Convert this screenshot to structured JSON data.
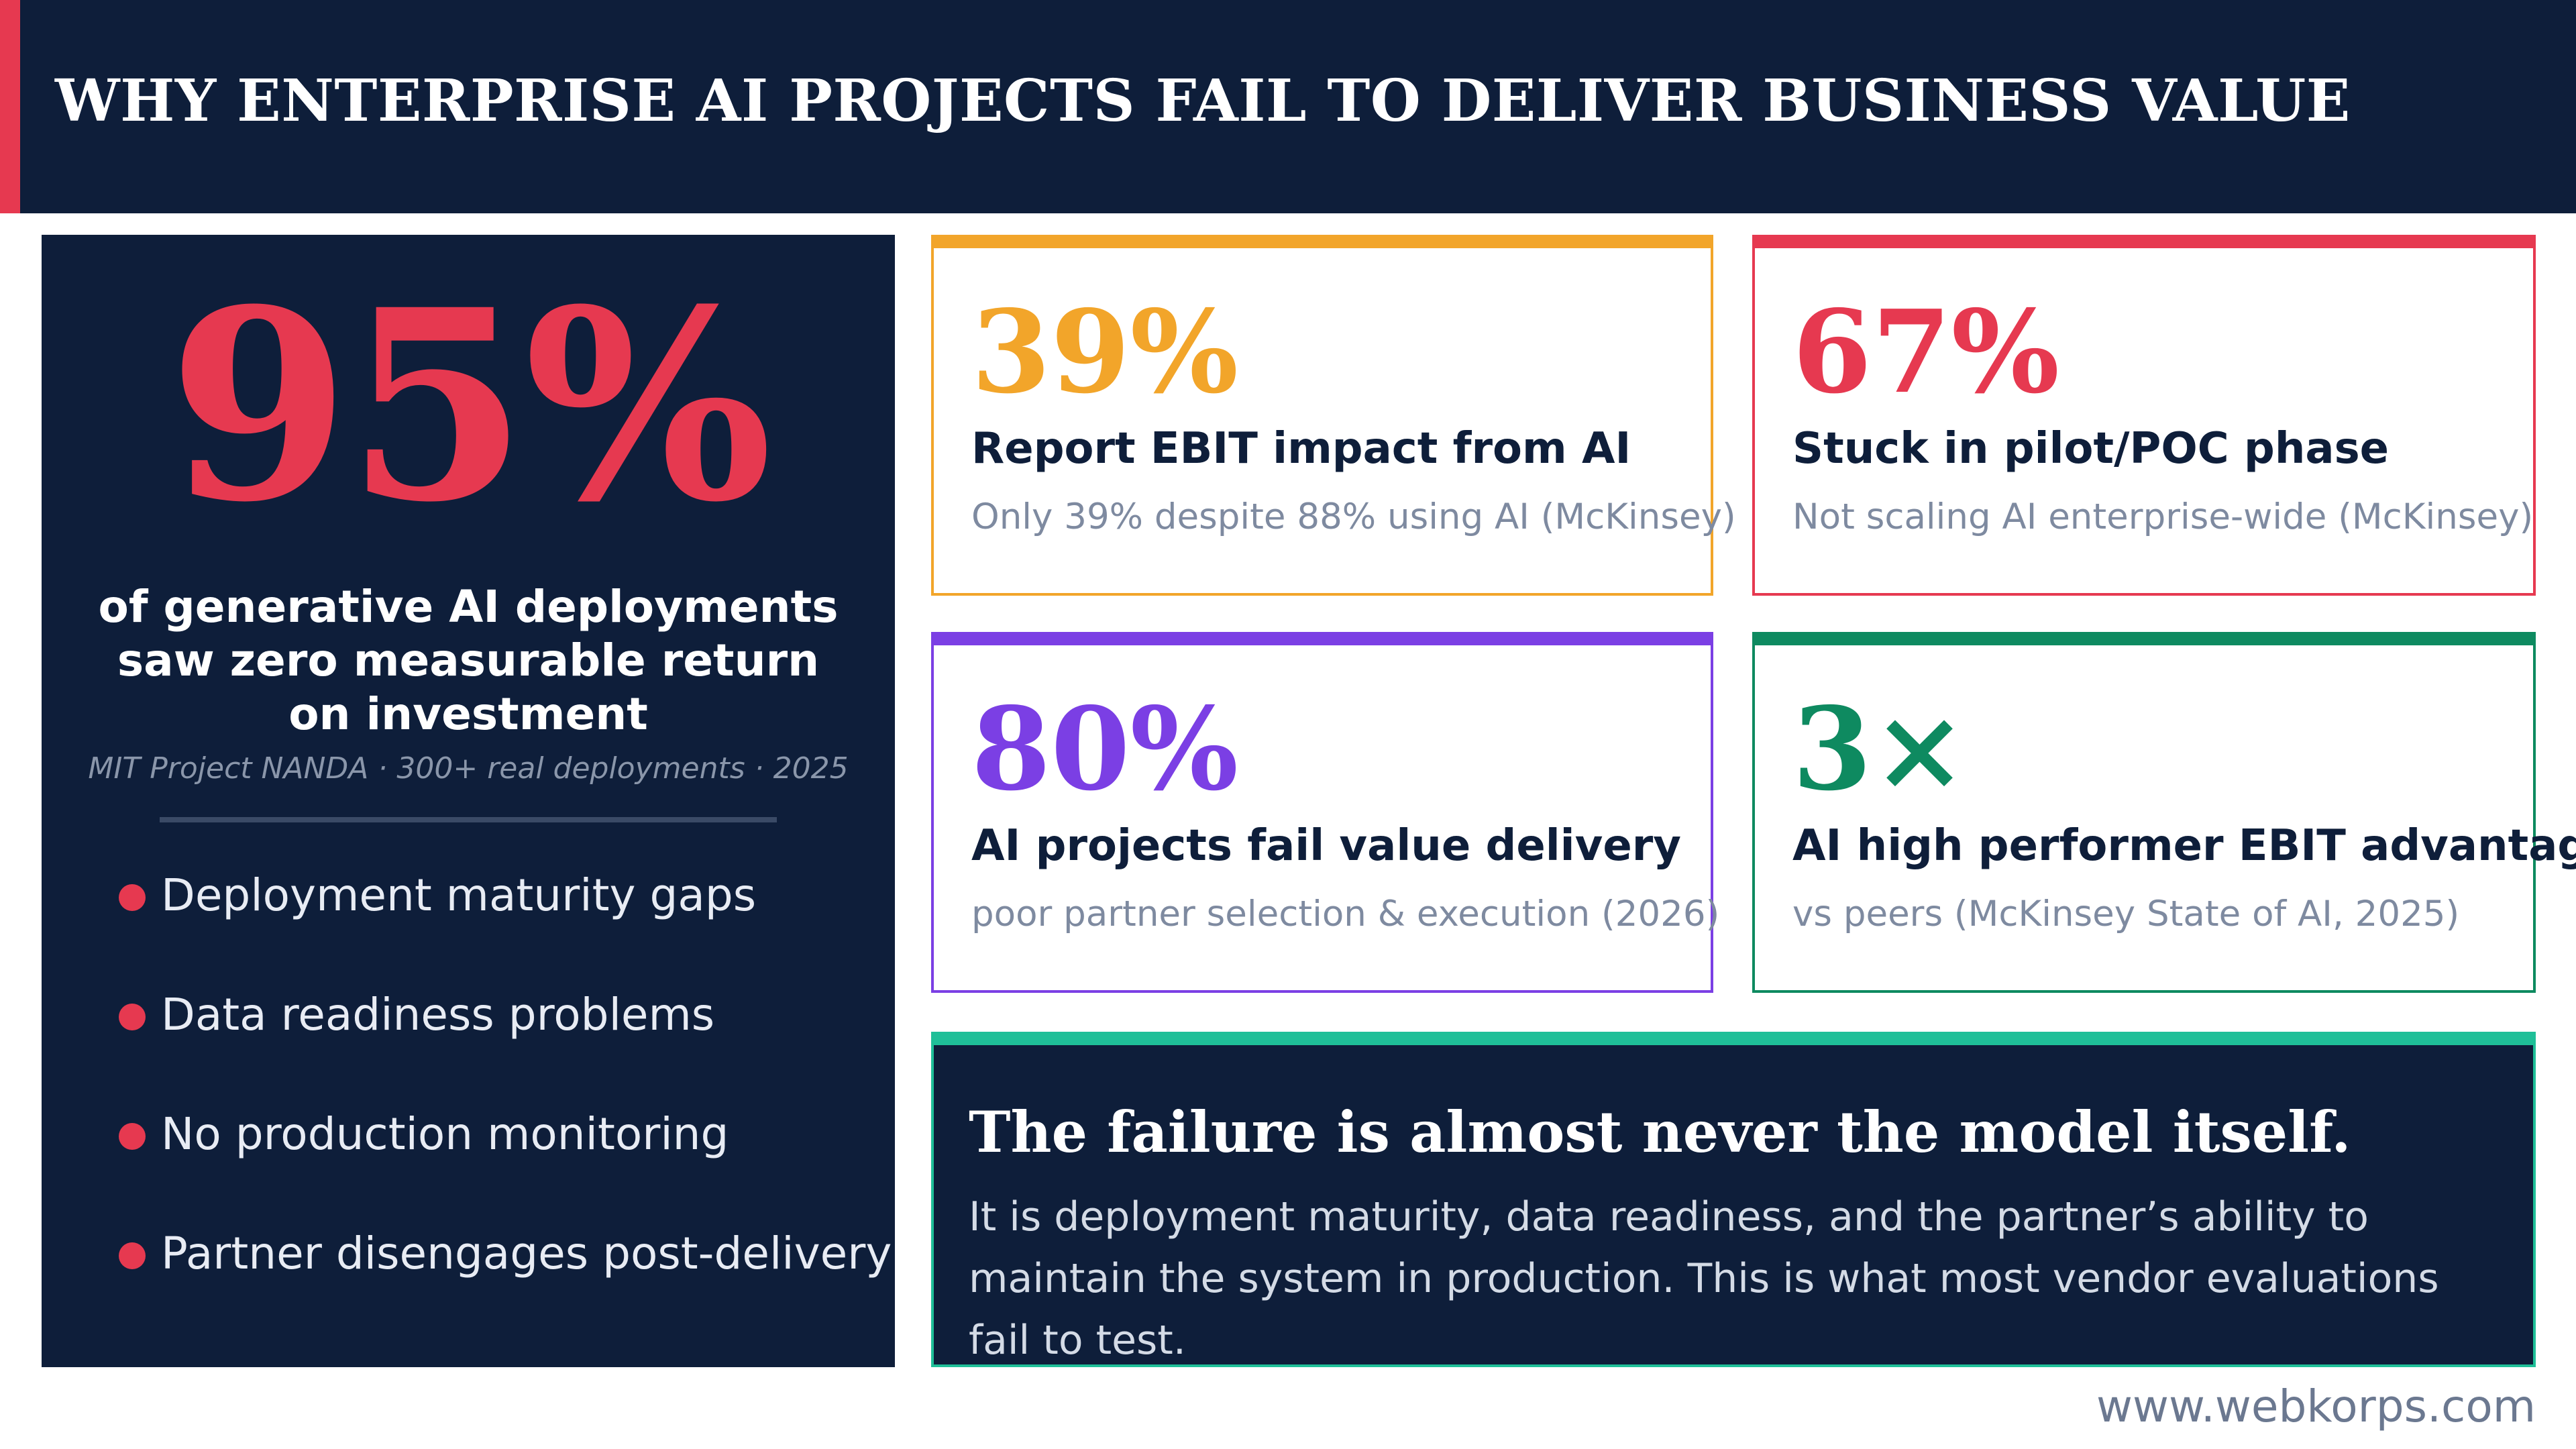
{
  "header": {
    "title": "WHY ENTERPRISE AI PROJECTS FAIL TO DELIVER BUSINESS VALUE"
  },
  "left_panel": {
    "stat": "95%",
    "description": "of generative AI deployments saw zero measurable return on investment",
    "source": "MIT Project NANDA · 300+ real deployments · 2025",
    "bullets": [
      "Deployment maturity gaps",
      "Data readiness problems",
      "No production monitoring",
      "Partner disengages post-delivery"
    ]
  },
  "cards": [
    {
      "stat": "39%",
      "label": "Report EBIT impact from AI",
      "sub": "Only 39% despite 88% using AI (McKinsey)",
      "color": "#f2a52a"
    },
    {
      "stat": "67%",
      "label": "Stuck in pilot/POC phase",
      "sub": "Not scaling AI enterprise-wide (McKinsey)",
      "color": "#e63950"
    },
    {
      "stat": "80%",
      "label": "AI projects fail value delivery",
      "sub": "poor partner selection & execution (2026)",
      "color": "#7b3fe4"
    },
    {
      "stat": "3×",
      "label": "AI high performer EBIT advantage",
      "sub": "vs peers (McKinsey State of AI, 2025)",
      "color": "#0e8a60"
    }
  ],
  "bottom_panel": {
    "title": "The failure is almost never the model itself.",
    "description": "It is deployment maturity, data readiness, and the partner’s ability to maintain the system in production. This is what most vendor evaluations fail to test."
  },
  "footer": {
    "url": "www.webkorps.com"
  }
}
